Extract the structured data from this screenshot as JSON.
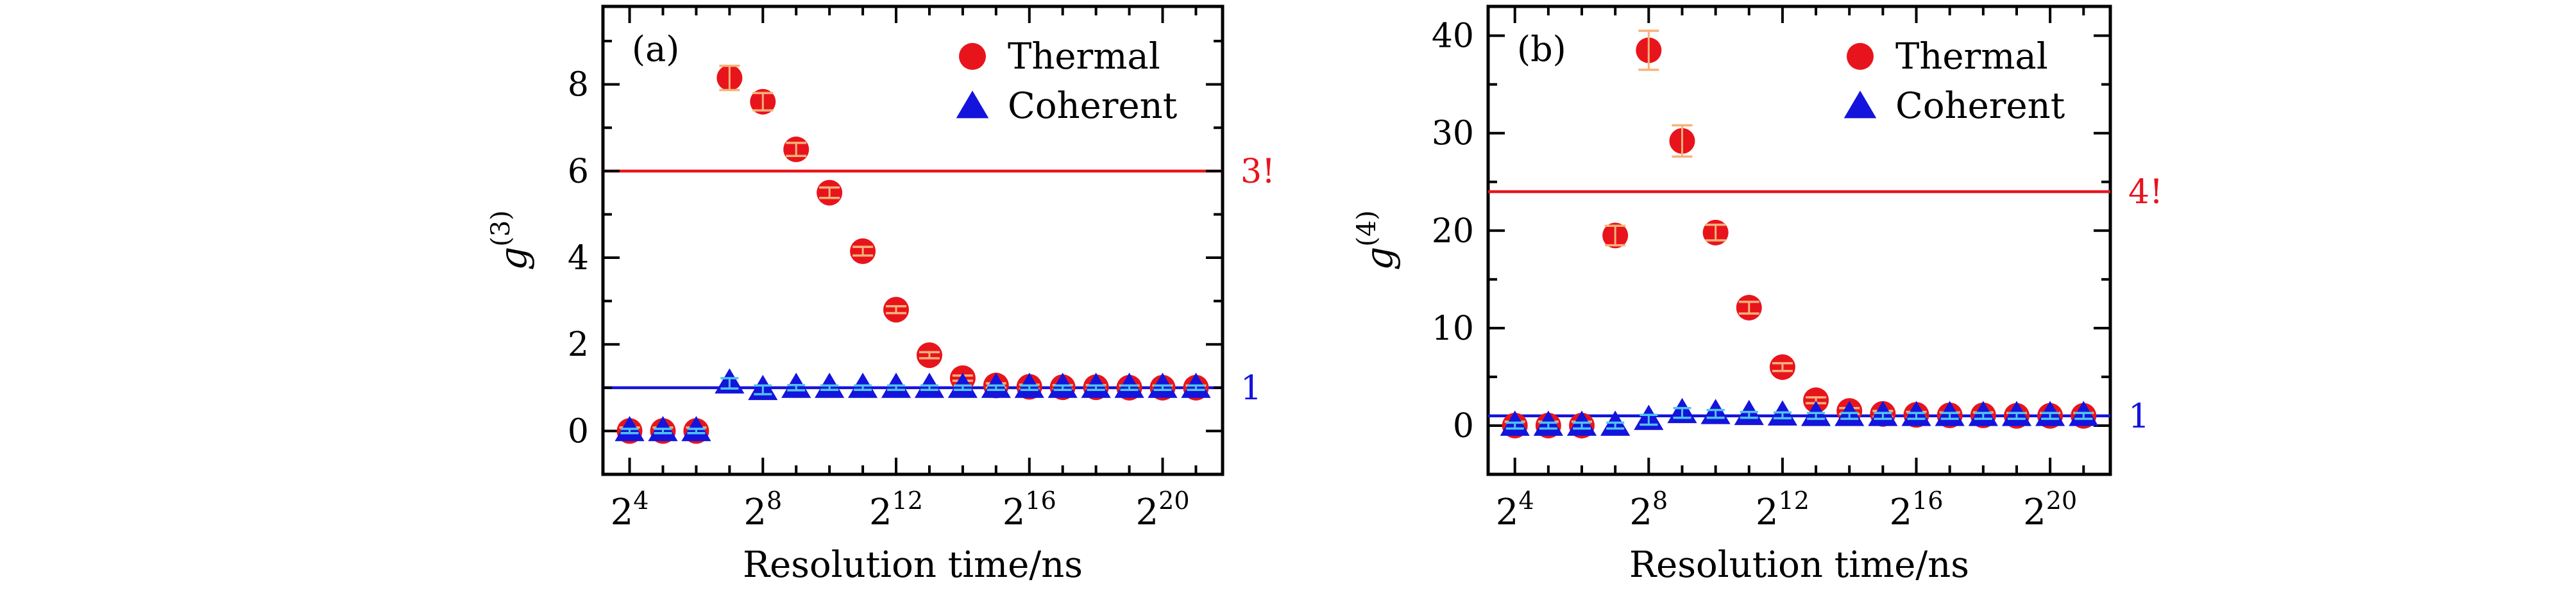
{
  "chart_data": [
    {
      "panel": "(a)",
      "type": "scatter",
      "ylabel_base": "g",
      "ylabel_sup": "(3)",
      "xlabel": "Resolution time/ns",
      "x_tick_base": "2",
      "x_tick_exponents": [
        "4",
        "8",
        "12",
        "16",
        "20"
      ],
      "x_tick_values": [
        4,
        8,
        12,
        16,
        20
      ],
      "xlim": [
        3.2,
        21.8
      ],
      "y_tick_labels": [
        "0",
        "2",
        "4",
        "6",
        "8"
      ],
      "y_tick_values": [
        0,
        2,
        4,
        6,
        8
      ],
      "ylim": [
        -1,
        9.8
      ],
      "x_axis_type": "log2",
      "legend_position": "top-right",
      "reference_lines": [
        {
          "y": 6,
          "label": "3!",
          "color": "#e8141c"
        },
        {
          "y": 1,
          "label": "1",
          "color": "#1414dc"
        }
      ],
      "series": [
        {
          "name": "Thermal",
          "marker": "circle",
          "color": "#e8141c",
          "x": [
            4,
            5,
            6,
            7,
            8,
            9,
            10,
            11,
            12,
            13,
            14,
            15,
            16,
            17,
            18,
            19,
            20,
            21
          ],
          "y": [
            0.0,
            0.0,
            0.0,
            8.15,
            7.6,
            6.5,
            5.5,
            4.15,
            2.8,
            1.75,
            1.22,
            1.05,
            1.02,
            1.01,
            1.01,
            1.0,
            1.0,
            1.0
          ],
          "err": [
            0.08,
            0.08,
            0.08,
            0.28,
            0.2,
            0.15,
            0.12,
            0.1,
            0.08,
            0.07,
            0.06,
            0.05,
            0.05,
            0.05,
            0.05,
            0.05,
            0.05,
            0.05
          ]
        },
        {
          "name": "Coherent",
          "marker": "triangle",
          "color": "#1414dc",
          "x": [
            4,
            5,
            6,
            7,
            8,
            9,
            10,
            11,
            12,
            13,
            14,
            15,
            16,
            17,
            18,
            19,
            20,
            21
          ],
          "y": [
            0.0,
            0.0,
            0.0,
            1.1,
            0.95,
            1.0,
            1.0,
            1.0,
            1.0,
            1.0,
            1.0,
            1.0,
            1.0,
            1.0,
            1.0,
            1.0,
            1.0,
            1.0
          ],
          "err": [
            0.05,
            0.05,
            0.05,
            0.12,
            0.1,
            0.06,
            0.05,
            0.05,
            0.05,
            0.05,
            0.05,
            0.05,
            0.05,
            0.05,
            0.05,
            0.05,
            0.05,
            0.05
          ]
        }
      ]
    },
    {
      "panel": "(b)",
      "type": "scatter",
      "ylabel_base": "g",
      "ylabel_sup": "(4)",
      "xlabel": "Resolution time/ns",
      "x_tick_base": "2",
      "x_tick_exponents": [
        "4",
        "8",
        "12",
        "16",
        "20"
      ],
      "x_tick_values": [
        4,
        8,
        12,
        16,
        20
      ],
      "xlim": [
        3.2,
        21.8
      ],
      "y_tick_labels": [
        "0",
        "10",
        "20",
        "30",
        "40"
      ],
      "y_tick_values": [
        0,
        10,
        20,
        30,
        40
      ],
      "ylim": [
        -5,
        43
      ],
      "x_axis_type": "log2",
      "legend_position": "top-right",
      "reference_lines": [
        {
          "y": 24,
          "label": "4!",
          "color": "#e8141c"
        },
        {
          "y": 1,
          "label": "1",
          "color": "#1414dc"
        }
      ],
      "series": [
        {
          "name": "Thermal",
          "marker": "circle",
          "color": "#e8141c",
          "x": [
            4,
            5,
            6,
            7,
            8,
            9,
            10,
            11,
            12,
            13,
            14,
            15,
            16,
            17,
            18,
            19,
            20,
            21
          ],
          "y": [
            0.0,
            0.0,
            0.0,
            19.5,
            38.5,
            29.2,
            19.8,
            12.1,
            6.0,
            2.6,
            1.5,
            1.2,
            1.1,
            1.05,
            1.05,
            1.0,
            1.0,
            1.0
          ],
          "err": [
            0.4,
            0.4,
            0.4,
            1.0,
            2.0,
            1.6,
            0.8,
            0.6,
            0.4,
            0.3,
            0.3,
            0.3,
            0.3,
            0.3,
            0.3,
            0.3,
            0.3,
            0.3
          ]
        },
        {
          "name": "Coherent",
          "marker": "triangle",
          "color": "#1414dc",
          "x": [
            4,
            5,
            6,
            7,
            8,
            9,
            10,
            11,
            12,
            13,
            14,
            15,
            16,
            17,
            18,
            19,
            20,
            21
          ],
          "y": [
            0.0,
            0.0,
            0.0,
            0.0,
            0.6,
            1.3,
            1.2,
            1.1,
            1.05,
            1.0,
            1.0,
            1.0,
            1.0,
            1.0,
            1.0,
            1.0,
            1.0,
            1.0
          ],
          "err": [
            0.3,
            0.3,
            0.3,
            0.3,
            0.5,
            0.5,
            0.4,
            0.3,
            0.3,
            0.3,
            0.3,
            0.3,
            0.3,
            0.3,
            0.3,
            0.3,
            0.3,
            0.3
          ]
        }
      ]
    }
  ]
}
